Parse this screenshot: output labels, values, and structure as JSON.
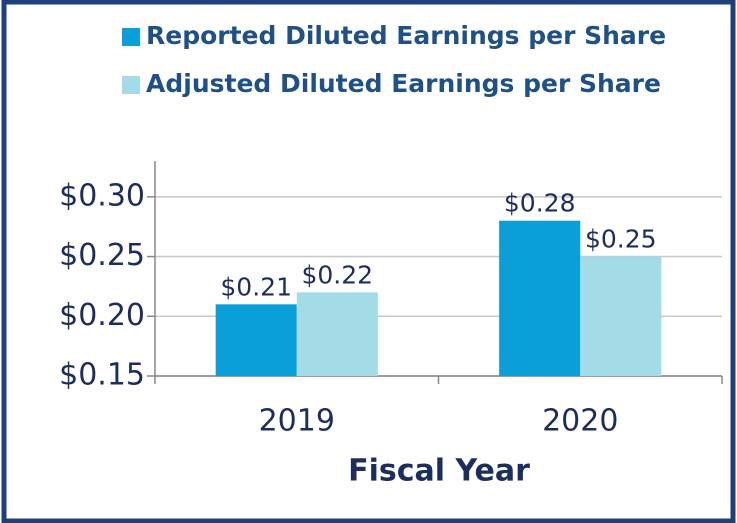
{
  "chart_data": {
    "type": "bar",
    "x_label": "Fiscal Year",
    "categories": [
      "2019",
      "2020"
    ],
    "series": [
      {
        "name": "Reported Diluted Earnings per Share",
        "color": "#0a9fd8",
        "values": [
          0.21,
          0.28
        ],
        "value_labels": [
          "$0.21",
          "$0.28"
        ]
      },
      {
        "name": "Adjusted Diluted Earnings per Share",
        "color": "#a3dbe7",
        "values": [
          0.22,
          0.25
        ],
        "value_labels": [
          "$0.22",
          "$0.25"
        ]
      }
    ],
    "ylim": [
      0.15,
      0.33
    ],
    "yticks": [
      {
        "value": 0.15,
        "label": "$0.15"
      },
      {
        "value": 0.2,
        "label": "$0.20"
      },
      {
        "value": 0.25,
        "label": "$0.25"
      },
      {
        "value": 0.3,
        "label": "$0.30"
      }
    ],
    "grid": true
  }
}
